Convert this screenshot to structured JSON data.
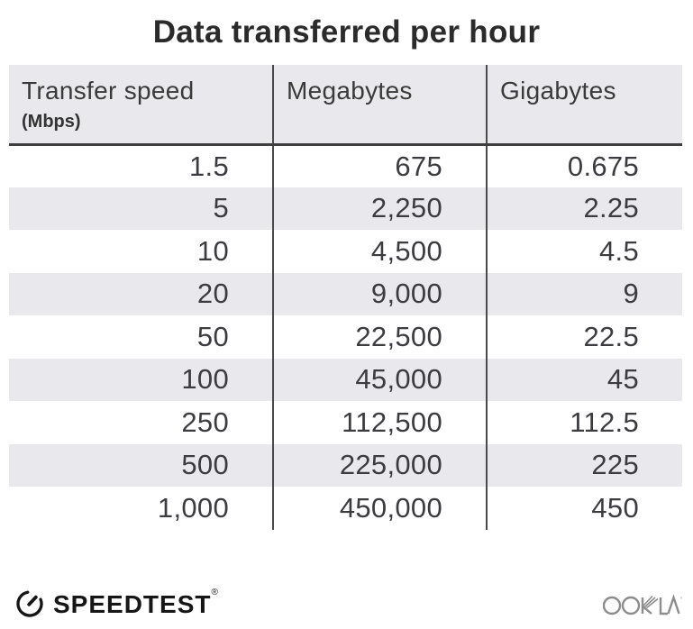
{
  "title": "Data transferred per hour",
  "table": {
    "column_keys": [
      "speed",
      "megabytes",
      "gigabytes"
    ],
    "columns": [
      {
        "label": "Transfer speed",
        "sublabel": "(Mbps)"
      },
      {
        "label": "Megabytes"
      },
      {
        "label": "Gigabytes"
      }
    ],
    "rows": [
      [
        "1.5",
        "675",
        "0.675"
      ],
      [
        "5",
        "2,250",
        "2.25"
      ],
      [
        "10",
        "4,500",
        "4.5"
      ],
      [
        "20",
        "9,000",
        "9"
      ],
      [
        "50",
        "22,500",
        "22.5"
      ],
      [
        "100",
        "45,000",
        "45"
      ],
      [
        "250",
        "112,500",
        "112.5"
      ],
      [
        "500",
        "225,000",
        "225"
      ],
      [
        "1,000",
        "450,000",
        "450"
      ]
    ]
  },
  "footer": {
    "brand": "SPEEDTEST",
    "brand_mark": "®",
    "attribution": "OOKLA",
    "attribution_mark": "™"
  },
  "colors": {
    "stripe": "#e9e8ec",
    "header_bg": "#e9e8ec",
    "divider": "#4a4a4a",
    "header_border": "#3f3f3f",
    "text": "#3c3c40",
    "title": "#2b2b2b",
    "brand": "#161616",
    "attribution": "#8d8d8d"
  },
  "chart_data": {
    "type": "table",
    "title": "Data transferred per hour",
    "columns": [
      "Transfer speed (Mbps)",
      "Megabytes",
      "Gigabytes"
    ],
    "rows": [
      [
        1.5,
        675,
        0.675
      ],
      [
        5,
        2250,
        2.25
      ],
      [
        10,
        4500,
        4.5
      ],
      [
        20,
        9000,
        9
      ],
      [
        50,
        22500,
        22.5
      ],
      [
        100,
        45000,
        45
      ],
      [
        250,
        112500,
        112.5
      ],
      [
        500,
        225000,
        225
      ],
      [
        1000,
        450000,
        450
      ]
    ],
    "layout": {
      "grid": "off",
      "row_striping": "alternate gray",
      "value_alignment": "right"
    }
  }
}
